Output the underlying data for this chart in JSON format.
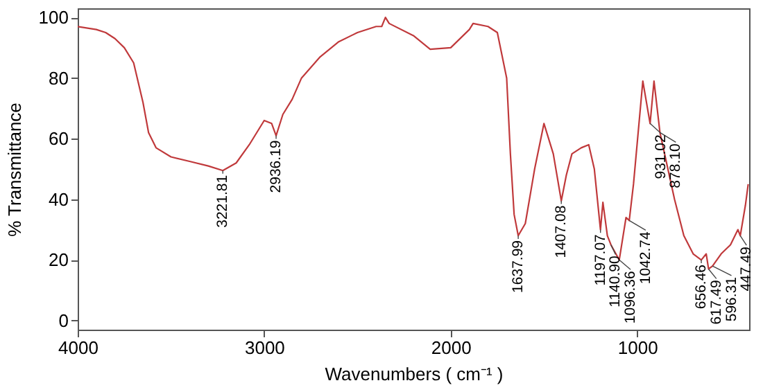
{
  "chart_data": {
    "type": "line",
    "xlabel": "Wavenumbers ( cm⁻¹ )",
    "ylabel": "% Transmittance",
    "xlim": [
      4000,
      400
    ],
    "ylim": [
      -3,
      103
    ],
    "xticks": [
      {
        "value": 4000,
        "label": "4000"
      },
      {
        "value": 3000,
        "label": "3000"
      },
      {
        "value": 2000,
        "label": "2000"
      },
      {
        "value": 1000,
        "label": "1000"
      }
    ],
    "yticks": [
      0,
      20,
      40,
      60,
      80,
      100
    ],
    "grid": false,
    "series": [
      {
        "color": "#c0393b",
        "x": [
          4000,
          3900,
          3850,
          3800,
          3750,
          3700,
          3650,
          3620,
          3580,
          3500,
          3400,
          3300,
          3221.81,
          3150,
          3080,
          3000,
          2960,
          2936.19,
          2900,
          2850,
          2800,
          2700,
          2600,
          2500,
          2400,
          2370,
          2350,
          2330,
          2200,
          2110,
          2000,
          1900,
          1880,
          1800,
          1750,
          1700,
          1680,
          1660,
          1637.99,
          1600,
          1550,
          1500,
          1450,
          1407.08,
          1380,
          1350,
          1300,
          1260,
          1230,
          1197.07,
          1184,
          1160,
          1140.9,
          1096.36,
          1060,
          1042.74,
          1020,
          970,
          931.02,
          910,
          878.1,
          800,
          750,
          700,
          656.46,
          630,
          617.49,
          596.31,
          550,
          500,
          460,
          447.49,
          420,
          405
        ],
        "values": [
          97,
          96,
          95,
          93,
          90,
          85,
          72,
          62,
          57,
          54,
          52.5,
          51,
          49.5,
          52,
          58,
          66,
          65,
          61,
          68,
          73,
          80,
          87,
          92,
          95,
          97,
          97,
          100,
          98,
          94,
          89.5,
          90,
          96,
          98,
          97,
          95,
          80,
          55,
          35,
          28,
          32,
          50,
          65,
          55,
          39.5,
          48,
          55,
          57,
          58,
          50,
          30,
          39,
          28,
          25,
          20,
          34,
          33,
          45,
          79,
          65,
          79,
          62,
          40,
          28,
          22,
          20,
          22,
          17,
          18,
          22,
          25,
          30,
          28,
          38,
          45
        ]
      }
    ],
    "annotations": [
      {
        "text": "3221.81",
        "x": 3221.81,
        "y": 49.5
      },
      {
        "text": "2936.19",
        "x": 2936.19,
        "y": 61
      },
      {
        "text": "1637.99",
        "x": 1637.99,
        "y": 28
      },
      {
        "text": "1407.08",
        "x": 1407.08,
        "y": 39.5
      },
      {
        "text": "1197.07",
        "x": 1197.07,
        "y": 30
      },
      {
        "text": "1140.90",
        "x": 1140.9,
        "y": 25
      },
      {
        "text": "1096.36",
        "x": 1096.36,
        "y": 20
      },
      {
        "text": "1042.74",
        "x": 1042.74,
        "y": 33
      },
      {
        "text": "931.02",
        "x": 931.02,
        "y": 65
      },
      {
        "text": "878.10",
        "x": 878.1,
        "y": 62
      },
      {
        "text": "656.46",
        "x": 656.46,
        "y": 20
      },
      {
        "text": "617.49",
        "x": 617.49,
        "y": 17
      },
      {
        "text": "596.31",
        "x": 596.31,
        "y": 18
      },
      {
        "text": "447.49",
        "x": 447.49,
        "y": 28
      }
    ]
  }
}
